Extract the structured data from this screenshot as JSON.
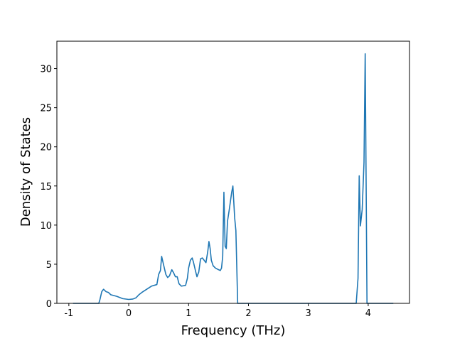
{
  "chart_data": {
    "type": "line",
    "x_label": "Frequency (THz)",
    "y_label": "Density of States",
    "xlim": [
      -1.2,
      4.69
    ],
    "ylim": [
      0,
      33.5
    ],
    "xticks": [
      -1,
      0,
      1,
      2,
      3,
      4
    ],
    "yticks": [
      0,
      5,
      10,
      15,
      20,
      25,
      30
    ],
    "series": [
      {
        "color": "#1f77b4",
        "x": [
          -0.93,
          -0.5,
          -0.48,
          -0.45,
          -0.42,
          -0.38,
          -0.34,
          -0.3,
          -0.2,
          -0.1,
          0,
          0.07,
          0.12,
          0.17,
          0.22,
          0.3,
          0.38,
          0.47,
          0.5,
          0.53,
          0.55,
          0.58,
          0.62,
          0.65,
          0.68,
          0.72,
          0.75,
          0.78,
          0.81,
          0.84,
          0.88,
          0.95,
          0.98,
          1.0,
          1.03,
          1.06,
          1.08,
          1.12,
          1.14,
          1.17,
          1.2,
          1.23,
          1.26,
          1.29,
          1.32,
          1.34,
          1.36,
          1.38,
          1.41,
          1.45,
          1.5,
          1.53,
          1.55,
          1.57,
          1.59,
          1.61,
          1.63,
          1.65,
          1.68,
          1.72,
          1.74,
          1.77,
          1.79,
          1.82,
          3.8,
          3.83,
          3.85,
          3.87,
          3.9,
          3.93,
          3.95,
          3.98,
          4.42
        ],
        "values": [
          0,
          0,
          0.5,
          1.5,
          1.8,
          1.5,
          1.4,
          1.1,
          0.9,
          0.6,
          0.5,
          0.55,
          0.7,
          1.1,
          1.4,
          1.8,
          2.2,
          2.4,
          3.7,
          4.2,
          6.0,
          5.0,
          3.7,
          3.3,
          3.5,
          4.3,
          3.9,
          3.4,
          3.4,
          2.5,
          2.2,
          2.3,
          3.2,
          4.5,
          5.5,
          5.8,
          5.3,
          4.0,
          3.4,
          4.0,
          5.7,
          5.8,
          5.5,
          5.2,
          6.6,
          7.9,
          7.0,
          5.5,
          4.8,
          4.5,
          4.3,
          4.2,
          4.5,
          6.0,
          14.2,
          7.3,
          7.0,
          10.5,
          12.0,
          14.2,
          15.0,
          10.9,
          9.3,
          0,
          0,
          3.2,
          16.3,
          9.9,
          12.0,
          18,
          31.9,
          0,
          0
        ]
      }
    ]
  }
}
